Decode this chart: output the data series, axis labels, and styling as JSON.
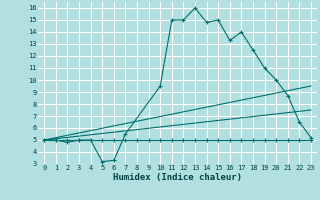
{
  "xlabel": "Humidex (Indice chaleur)",
  "background_color": "#b2dfdf",
  "grid_color": "#ffffff",
  "line_color": "#007070",
  "xlim": [
    -0.5,
    23.5
  ],
  "ylim": [
    3,
    16.5
  ],
  "xticks": [
    0,
    1,
    2,
    3,
    4,
    5,
    6,
    7,
    8,
    9,
    10,
    11,
    12,
    13,
    14,
    15,
    16,
    17,
    18,
    19,
    20,
    21,
    22,
    23
  ],
  "yticks": [
    3,
    4,
    5,
    6,
    7,
    8,
    9,
    10,
    11,
    12,
    13,
    14,
    15,
    16
  ],
  "lines": [
    {
      "x": [
        0,
        1,
        2,
        3,
        4,
        5,
        6,
        7,
        10,
        11,
        12,
        13,
        14,
        15,
        16,
        17,
        18,
        19,
        20,
        21,
        22,
        23
      ],
      "y": [
        5,
        5,
        4.8,
        5,
        5,
        3.2,
        3.3,
        5.5,
        9.5,
        15,
        15,
        16,
        14.8,
        15,
        13.3,
        14,
        12.5,
        11,
        10,
        8.7,
        6.5,
        5.2
      ],
      "marker": true
    },
    {
      "x": [
        0,
        1,
        2,
        3,
        4,
        5,
        6,
        7,
        8,
        9,
        10,
        11,
        12,
        13,
        14,
        15,
        16,
        17,
        18,
        19,
        20,
        21,
        22,
        23
      ],
      "y": [
        5,
        5,
        5,
        5,
        5,
        5,
        5,
        5,
        5,
        5,
        5,
        5,
        5,
        5,
        5,
        5,
        5,
        5,
        5,
        5,
        5,
        5,
        5,
        5
      ],
      "marker": true
    },
    {
      "x": [
        0,
        23
      ],
      "y": [
        5.0,
        9.5
      ],
      "marker": false
    },
    {
      "x": [
        0,
        23
      ],
      "y": [
        5.0,
        7.5
      ],
      "marker": false
    }
  ]
}
